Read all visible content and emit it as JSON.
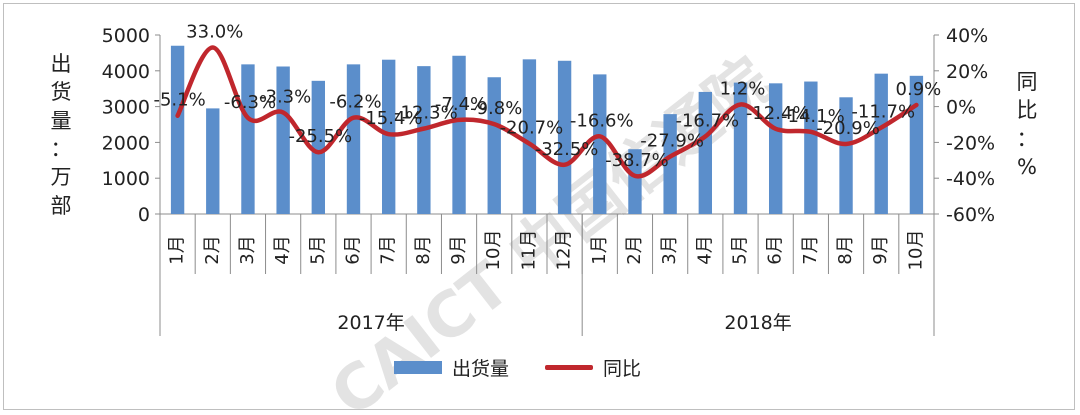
{
  "chart_data": {
    "type": "bar+line",
    "categories": [
      "1月",
      "2月",
      "3月",
      "4月",
      "5月",
      "6月",
      "7月",
      "8月",
      "9月",
      "10月",
      "11月",
      "12月",
      "1月",
      "2月",
      "3月",
      "4月",
      "5月",
      "6月",
      "7月",
      "8月",
      "9月",
      "10月"
    ],
    "groups": [
      {
        "label": "2017年",
        "count": 12
      },
      {
        "label": "2018年",
        "count": 10
      }
    ],
    "series": [
      {
        "name": "出货量",
        "type": "bar",
        "axis": "left",
        "color": "#5b8ecb",
        "values": [
          4700,
          2950,
          4180,
          4120,
          3720,
          4180,
          4310,
          4130,
          4420,
          3820,
          4320,
          4280,
          3900,
          1810,
          2790,
          3410,
          3670,
          3650,
          3700,
          3260,
          3920,
          3860
        ]
      },
      {
        "name": "同比",
        "type": "line",
        "axis": "right",
        "color": "#c0272d",
        "values": [
          -5.1,
          33.0,
          -6.3,
          -3.3,
          -25.5,
          -6.2,
          -15.4,
          -12.3,
          -7.4,
          -9.8,
          -20.7,
          -32.5,
          -16.6,
          -38.7,
          -27.9,
          -16.7,
          1.2,
          -12.4,
          -14.1,
          -20.9,
          -11.7,
          0.9
        ],
        "labels": [
          "-5.1%",
          "33.0%",
          "-6.3%",
          "-3.3%",
          "-25.5%",
          "-6.2%",
          "-15.4%",
          "-12.3%",
          "-7.4%",
          "-9.8%",
          "-20.7%",
          "-32.5%",
          "-16.6%",
          "-38.7%",
          "-27.9%",
          "-16.7%",
          "1.2%",
          "-12.4%",
          "-14.1%",
          "-20.9%",
          "-11.7%",
          "0.9%"
        ]
      }
    ],
    "y_left": {
      "label": "出货量：万部",
      "ticks": [
        "0",
        "1000",
        "2000",
        "3000",
        "4000",
        "5000"
      ],
      "range": [
        0,
        5000
      ]
    },
    "y_right": {
      "label": "同比：%",
      "ticks": [
        "-60%",
        "-40%",
        "-20%",
        "0%",
        "20%",
        "40%"
      ],
      "range": [
        -60,
        40
      ]
    },
    "grid": false,
    "legend_position": "bottom"
  },
  "watermark": "CAICT 中国信通院"
}
